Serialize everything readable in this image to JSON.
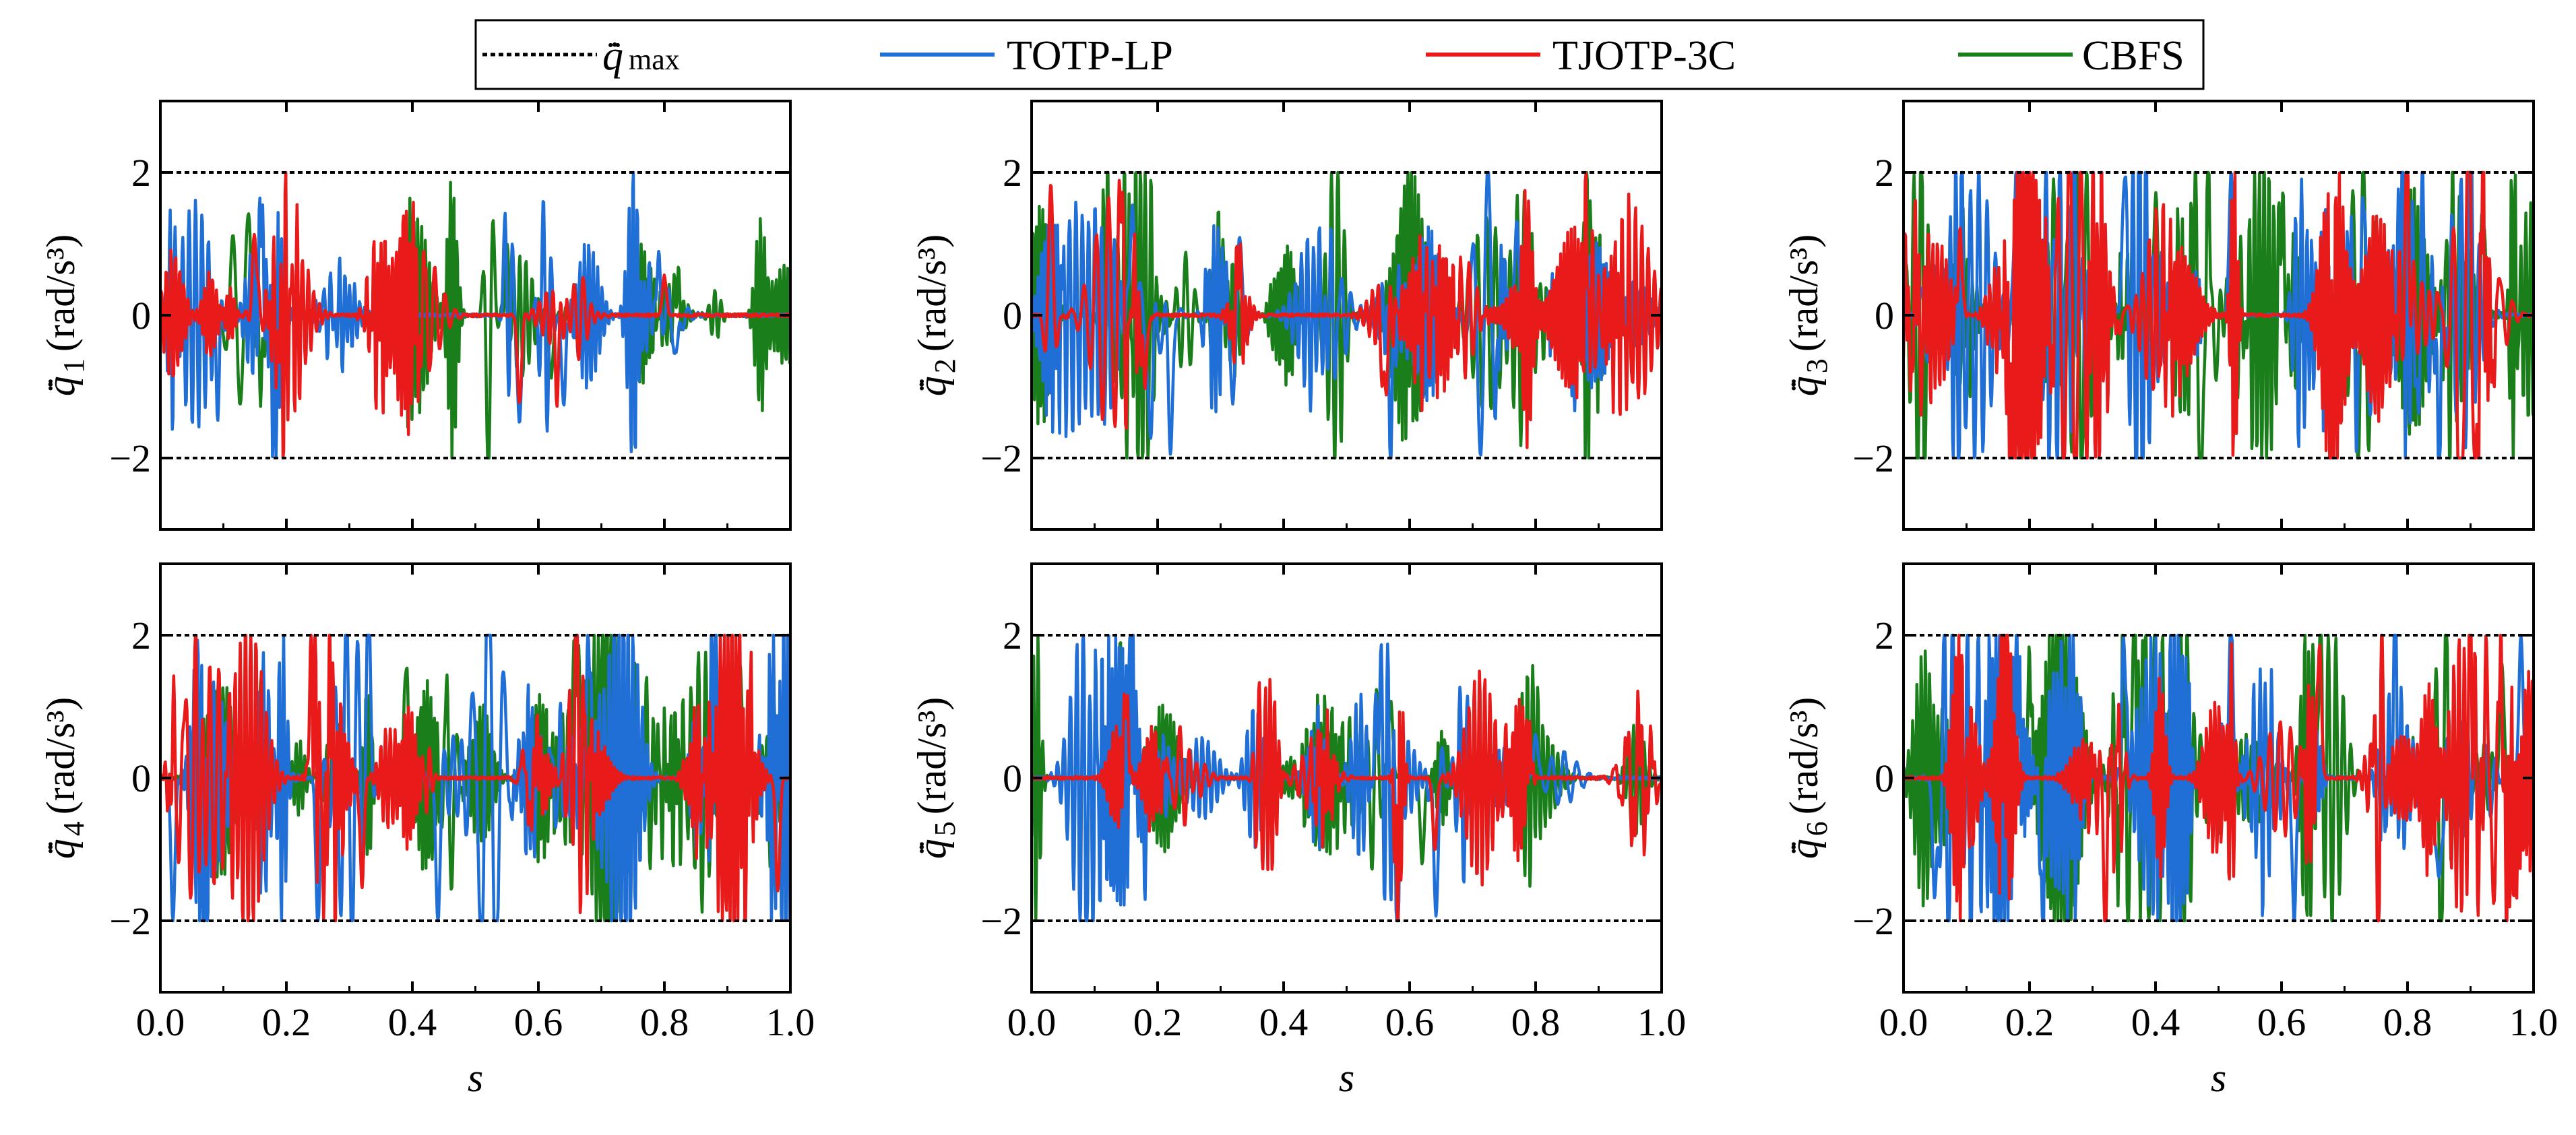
{
  "legend": {
    "items": [
      {
        "label": "",
        "symbol": "q̈̇",
        "subscript": "max",
        "color": "#000000",
        "dash": true
      },
      {
        "label": "TOTP-LP",
        "color": "#1f6fd6"
      },
      {
        "label": "TJOTP-3C",
        "color": "#e81a1a"
      },
      {
        "label": "CBFS",
        "color": "#1a7f1a"
      }
    ]
  },
  "chart_data": [
    {
      "type": "line",
      "panel": 1,
      "ylabel_symbol": "q̈̇",
      "ylabel_subscript": "1",
      "ylabel_unit": "(rad/s³)",
      "xlabel": "",
      "xlim": [
        0,
        1
      ],
      "ylim": [
        -3,
        3
      ],
      "x_ticks": [
        "0.0",
        "0.2",
        "0.4",
        "0.6",
        "0.8",
        "1.0"
      ],
      "y_ticks": [
        "−2",
        "0",
        "2"
      ],
      "limit": 2,
      "grid": false,
      "legend": "top-outside",
      "activity": 0.45,
      "series": [
        {
          "name": "TOTP-LP",
          "peaks": [
            [
              0.09,
              -1.1
            ],
            [
              0.16,
              1.45
            ],
            [
              0.18,
              -1.2
            ],
            [
              0.55,
              1.0
            ],
            [
              0.57,
              -1.5
            ],
            [
              0.64,
              -1.25
            ],
            [
              0.79,
              0.9
            ],
            [
              0.82,
              -0.65
            ]
          ]
        },
        {
          "name": "TJOTP-3C",
          "peaks": [
            [
              0.15,
              1.2
            ],
            [
              0.19,
              -0.6
            ],
            [
              0.57,
              -1.25
            ],
            [
              0.63,
              -0.85
            ],
            [
              0.8,
              0.55
            ]
          ]
        },
        {
          "name": "CBFS",
          "peaks": [
            [
              0.14,
              0.85
            ],
            [
              0.16,
              -0.95
            ],
            [
              0.55,
              0.7
            ],
            [
              0.62,
              -0.9
            ],
            [
              0.82,
              0.5
            ]
          ]
        }
      ]
    },
    {
      "type": "line",
      "panel": 2,
      "ylabel_symbol": "q̈̇",
      "ylabel_subscript": "2",
      "ylabel_unit": "(rad/s³)",
      "xlabel": "",
      "xlim": [
        0,
        1
      ],
      "ylim": [
        -3,
        3
      ],
      "x_ticks": [
        "0.0",
        "0.2",
        "0.4",
        "0.6",
        "0.8",
        "1.0"
      ],
      "y_ticks": [
        "−2",
        "0",
        "2"
      ],
      "limit": 2,
      "grid": false,
      "legend": "top-outside",
      "activity": 0.7,
      "series": [
        {
          "name": "TOTP-LP",
          "peaks": [
            [
              0.16,
              1.8
            ],
            [
              0.19,
              -2.0
            ],
            [
              0.22,
              -2.0
            ],
            [
              0.57,
              -1.6
            ],
            [
              0.77,
              1.3
            ],
            [
              0.86,
              -1.2
            ]
          ]
        },
        {
          "name": "TJOTP-3C",
          "peaks": [
            [
              0.14,
              0.9
            ],
            [
              0.18,
              -1.0
            ],
            [
              0.56,
              -1.3
            ],
            [
              0.88,
              0.9
            ]
          ]
        },
        {
          "name": "CBFS",
          "peaks": [
            [
              0.12,
              0.95
            ],
            [
              0.3,
              0.7
            ],
            [
              0.6,
              0.9
            ],
            [
              0.85,
              0.85
            ]
          ]
        }
      ]
    },
    {
      "type": "line",
      "panel": 3,
      "ylabel_symbol": "q̈̇",
      "ylabel_subscript": "3",
      "ylabel_unit": "(rad/s³)",
      "xlabel": "",
      "xlim": [
        0,
        1
      ],
      "ylim": [
        -3,
        3
      ],
      "x_ticks": [
        "0.0",
        "0.2",
        "0.4",
        "0.6",
        "0.8",
        "1.0"
      ],
      "y_ticks": [
        "−2",
        "0",
        "2"
      ],
      "limit": 2,
      "grid": false,
      "legend": "top-outside",
      "activity": 1.0,
      "series": [
        {
          "name": "TOTP-LP",
          "peaks": [
            [
              0.18,
              2.0
            ],
            [
              0.27,
              2.0
            ],
            [
              0.35,
              2.0
            ],
            [
              0.52,
              2.0
            ],
            [
              0.68,
              -2.0
            ],
            [
              0.79,
              2.0
            ],
            [
              0.85,
              -2.0
            ],
            [
              0.9,
              1.9
            ]
          ]
        },
        {
          "name": "TJOTP-3C",
          "peaks": [
            [
              0.09,
              1.1
            ],
            [
              0.17,
              -1.9
            ],
            [
              0.68,
              -1.9
            ],
            [
              0.8,
              1.9
            ],
            [
              0.88,
              -1.8
            ]
          ]
        },
        {
          "name": "CBFS",
          "peaks": [
            [
              0.24,
              1.5
            ],
            [
              0.4,
              1.7
            ],
            [
              0.6,
              1.6
            ],
            [
              0.92,
              1.4
            ]
          ]
        }
      ]
    },
    {
      "type": "line",
      "panel": 4,
      "ylabel_symbol": "q̈̇",
      "ylabel_subscript": "4",
      "ylabel_unit": "(rad/s³)",
      "xlabel": "s",
      "xlim": [
        0,
        1
      ],
      "ylim": [
        -3,
        3
      ],
      "x_ticks": [
        "0.0",
        "0.2",
        "0.4",
        "0.6",
        "0.8",
        "1.0"
      ],
      "y_ticks": [
        "−2",
        "0",
        "2"
      ],
      "limit": 2,
      "grid": false,
      "legend": "top-outside",
      "activity": 0.95,
      "series": [
        {
          "name": "TOTP-LP",
          "peaks": [
            [
              0.02,
              -2.0
            ],
            [
              0.07,
              -2.0
            ],
            [
              0.25,
              -2.0
            ],
            [
              0.33,
              2.0
            ],
            [
              0.44,
              -2.0
            ],
            [
              0.68,
              2.0
            ],
            [
              0.88,
              1.9
            ]
          ]
        },
        {
          "name": "TJOTP-3C",
          "peaks": [
            [
              0.24,
              1.8
            ],
            [
              0.32,
              -1.5
            ],
            [
              0.66,
              1.9
            ],
            [
              0.98,
              -1.6
            ]
          ]
        },
        {
          "name": "CBFS",
          "peaks": [
            [
              0.16,
              1.4
            ],
            [
              0.39,
              1.6
            ],
            [
              0.66,
              2.1
            ],
            [
              0.92,
              1.6
            ]
          ]
        }
      ]
    },
    {
      "type": "line",
      "panel": 5,
      "ylabel_symbol": "q̈̇",
      "ylabel_subscript": "5",
      "ylabel_unit": "(rad/s³)",
      "xlabel": "s",
      "xlim": [
        0,
        1
      ],
      "ylim": [
        -3,
        3
      ],
      "x_ticks": [
        "0.0",
        "0.2",
        "0.4",
        "0.6",
        "0.8",
        "1.0"
      ],
      "y_ticks": [
        "−2",
        "0",
        "2"
      ],
      "limit": 2,
      "grid": false,
      "legend": "top-outside",
      "activity": 0.45,
      "series": [
        {
          "name": "TOTP-LP",
          "peaks": [
            [
              0.09,
              -1.0
            ],
            [
              0.16,
              1.65
            ],
            [
              0.18,
              -1.25
            ],
            [
              0.55,
              1.4
            ],
            [
              0.58,
              -2.0
            ],
            [
              0.64,
              -1.85
            ],
            [
              0.8,
              0.6
            ]
          ]
        },
        {
          "name": "TJOTP-3C",
          "peaks": [
            [
              0.15,
              1.2
            ],
            [
              0.58,
              -1.6
            ],
            [
              0.64,
              -1.0
            ],
            [
              0.79,
              0.5
            ]
          ]
        },
        {
          "name": "CBFS",
          "peaks": [
            [
              0.14,
              1.0
            ],
            [
              0.57,
              1.1
            ],
            [
              0.62,
              -1.2
            ],
            [
              0.8,
              0.4
            ]
          ]
        }
      ]
    },
    {
      "type": "line",
      "panel": 6,
      "ylabel_symbol": "q̈̇",
      "ylabel_subscript": "6",
      "ylabel_unit": "(rad/s³)",
      "xlabel": "s",
      "xlim": [
        0,
        1
      ],
      "ylim": [
        -3,
        3
      ],
      "x_ticks": [
        "0.0",
        "0.2",
        "0.4",
        "0.6",
        "0.8",
        "1.0"
      ],
      "y_ticks": [
        "−2",
        "0",
        "2"
      ],
      "limit": 2,
      "grid": false,
      "legend": "top-outside",
      "activity": 1.0,
      "series": [
        {
          "name": "TOTP-LP",
          "peaks": [
            [
              0.05,
              -2.0
            ],
            [
              0.18,
              2.0
            ],
            [
              0.22,
              -2.0
            ],
            [
              0.35,
              2.0
            ],
            [
              0.52,
              2.0
            ],
            [
              0.62,
              -2.0
            ],
            [
              0.78,
              2.0
            ],
            [
              0.85,
              -2.0
            ],
            [
              0.98,
              2.0
            ]
          ]
        },
        {
          "name": "TJOTP-3C",
          "peaks": [
            [
              0.16,
              1.9
            ],
            [
              0.32,
              -1.7
            ],
            [
              0.66,
              1.9
            ],
            [
              0.9,
              2.0
            ],
            [
              0.97,
              -1.6
            ]
          ]
        },
        {
          "name": "CBFS",
          "peaks": [
            [
              0.2,
              1.6
            ],
            [
              0.37,
              1.6
            ],
            [
              0.66,
              1.6
            ],
            [
              0.95,
              1.6
            ]
          ]
        }
      ]
    }
  ]
}
